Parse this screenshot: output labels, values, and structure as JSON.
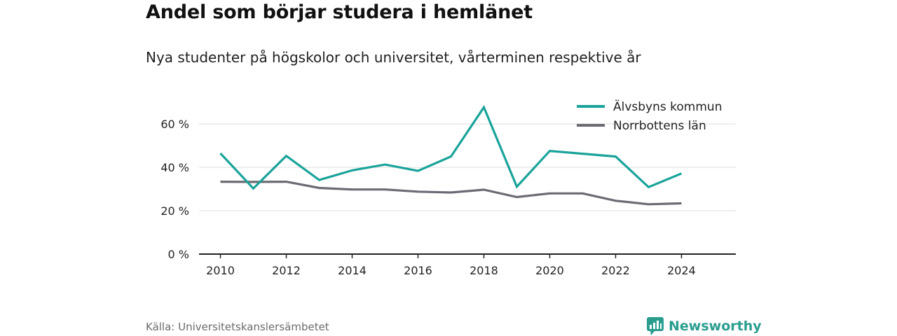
{
  "title": "Andel som börjar studera i hemlänet",
  "subtitle": "Nya studenter på högskolor och universitet, vårterminen respektive år",
  "source": "Källa: Universitetskanslersämbetet",
  "brand": "Newsworthy",
  "colors": {
    "alvsbyn": "#1aa39a",
    "norrbotten": "#6c6a73",
    "grid": "#dddddd",
    "axis": "#222222",
    "brand": "#2a9d8f"
  },
  "chart_data": {
    "type": "line",
    "title": "Andel som börjar studera i hemlänet",
    "subtitle": "Nya studenter på högskolor och universitet, vårterminen respektive år",
    "xlabel": "",
    "ylabel": "",
    "x": [
      2010,
      2011,
      2012,
      2013,
      2014,
      2015,
      2016,
      2017,
      2018,
      2019,
      2020,
      2021,
      2022,
      2023,
      2024
    ],
    "xticks": [
      "2010",
      "2012",
      "2014",
      "2016",
      "2018",
      "2020",
      "2022",
      "2024"
    ],
    "yticks": [
      "0 %",
      "20 %",
      "40 %",
      "60 %"
    ],
    "ylim": [
      0,
      72
    ],
    "xlim": [
      2009.35,
      2025.65
    ],
    "grid": true,
    "legend_position": "top-right",
    "series": [
      {
        "name": "Älvsbyns kommun",
        "values": [
          46.5,
          30.3,
          45.3,
          34.2,
          38.6,
          41.3,
          38.4,
          45.0,
          67.7,
          31.1,
          47.6,
          46.3,
          45.0,
          30.9,
          37.2
        ]
      },
      {
        "name": "Norrbottens län",
        "values": [
          33.4,
          33.3,
          33.4,
          30.5,
          29.8,
          29.8,
          28.8,
          28.4,
          29.7,
          26.3,
          28.0,
          28.0,
          24.6,
          23.0,
          23.4
        ]
      }
    ]
  }
}
